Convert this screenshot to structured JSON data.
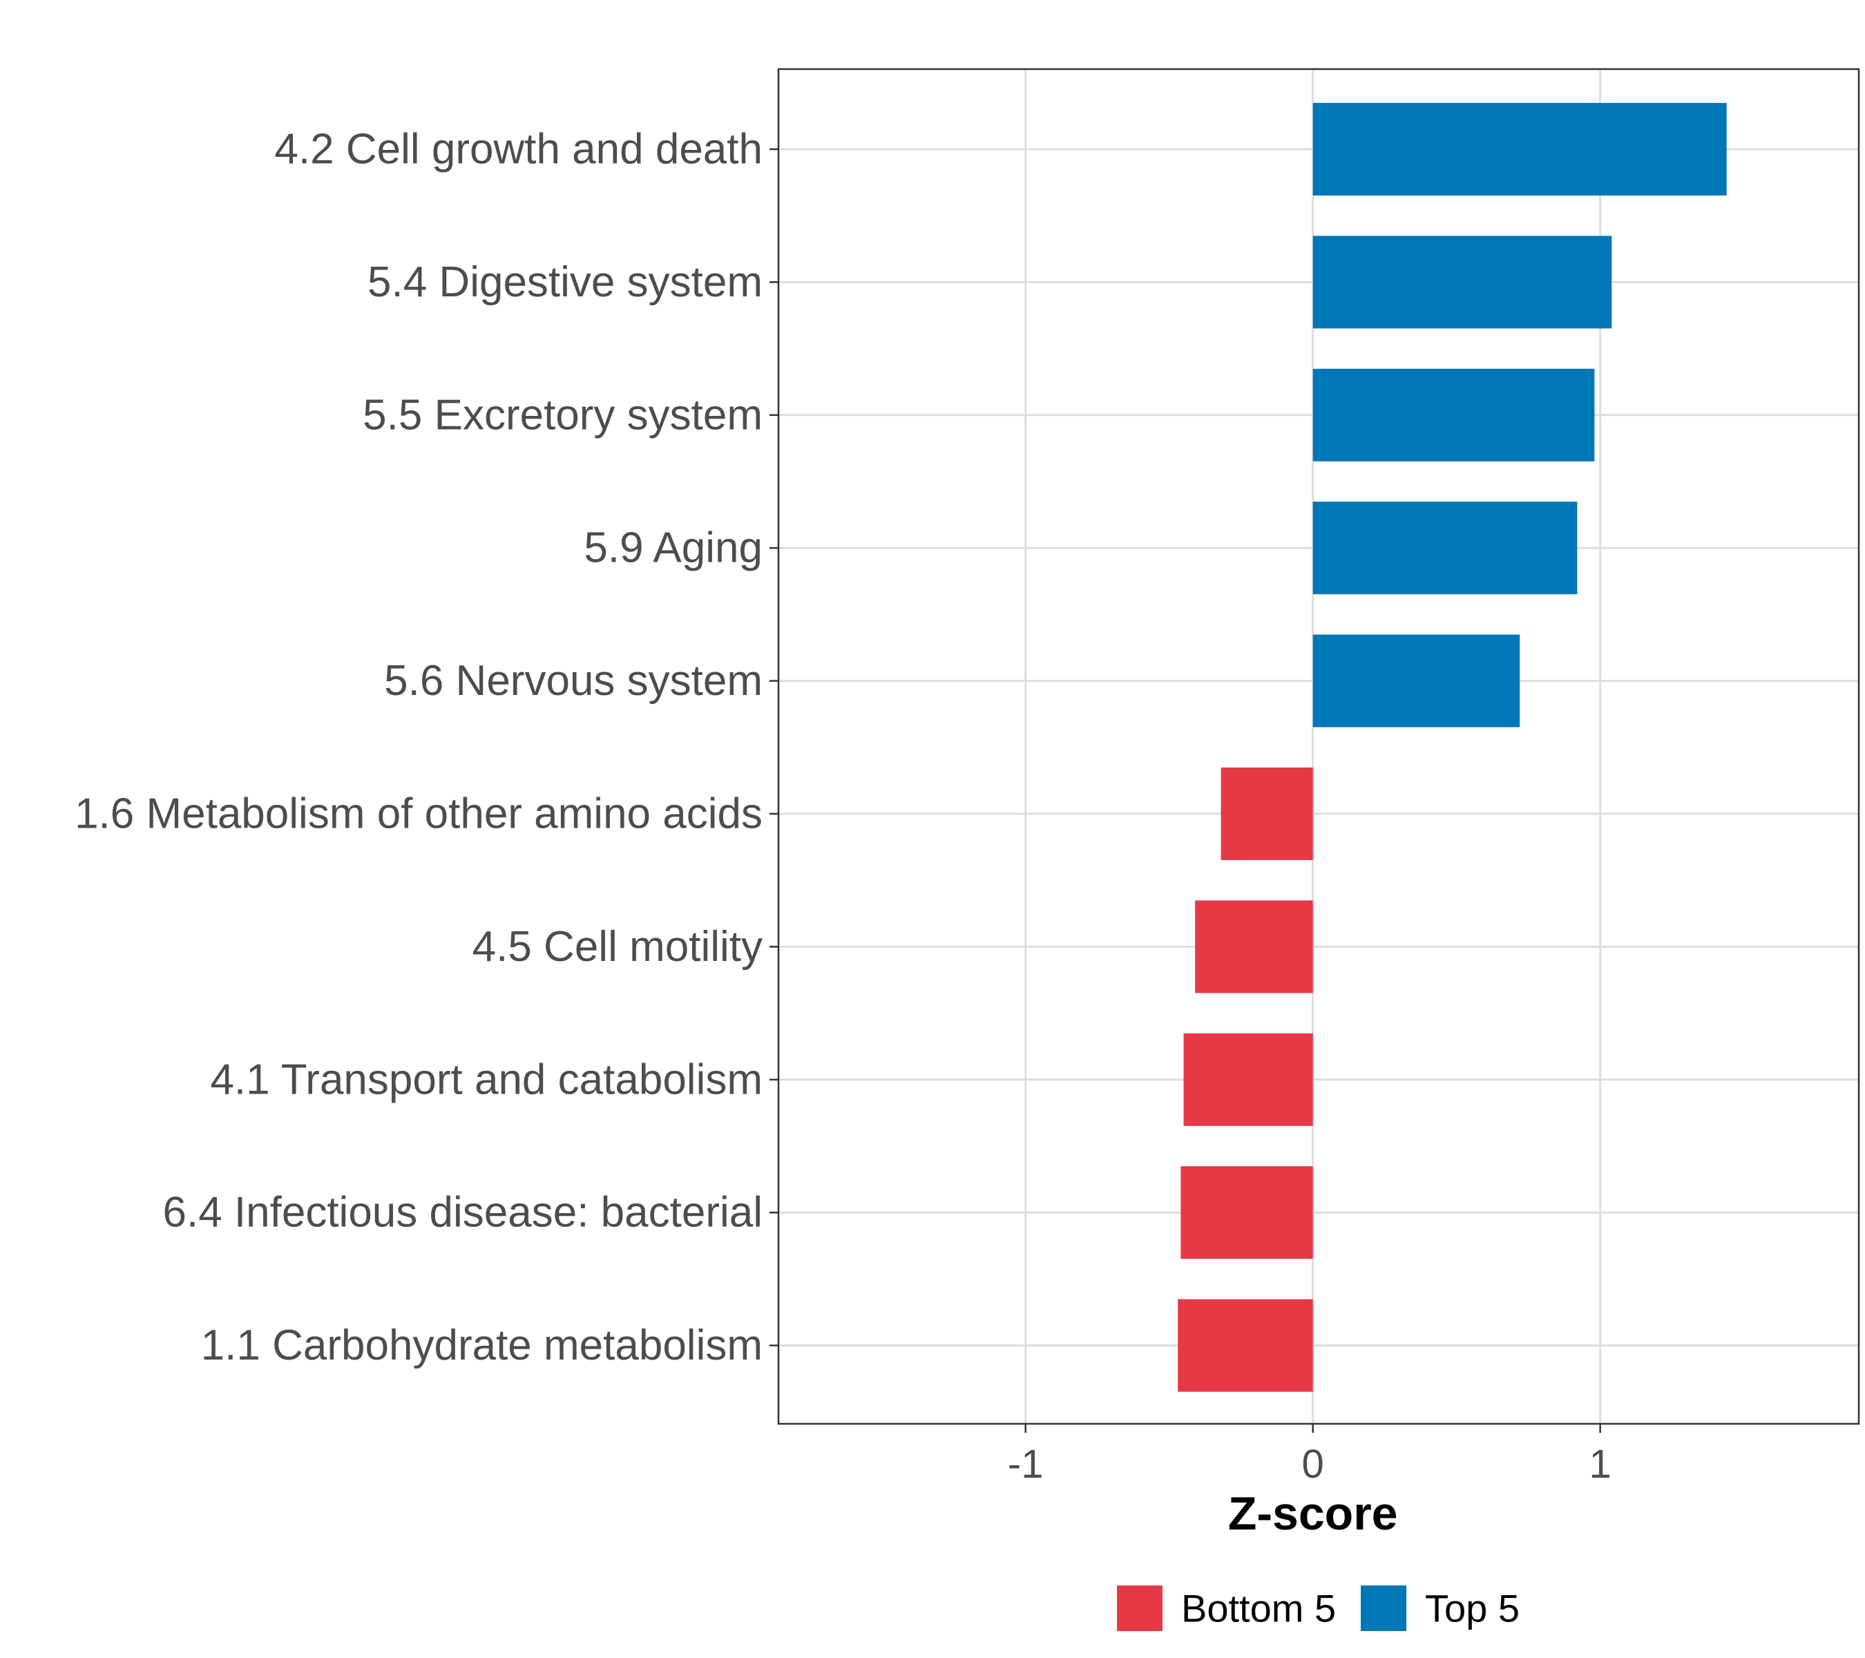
{
  "chart_data": {
    "type": "bar",
    "orientation": "horizontal",
    "title": "",
    "xlabel": "Z-score",
    "ylabel": "",
    "xlim": [
      -1.86,
      1.9
    ],
    "xticks": [
      -1,
      0,
      1
    ],
    "xtick_labels": [
      "-1",
      "0",
      "1"
    ],
    "grid": true,
    "legend_position": "bottom",
    "categories": [
      "4.2 Cell growth and death",
      "5.4 Digestive system",
      "5.5 Excretory system",
      "5.9 Aging",
      "5.6 Nervous system",
      "1.6 Metabolism of other amino acids",
      "4.5 Cell motility",
      "4.1 Transport and catabolism",
      "6.4 Infectious disease: bacterial",
      "1.1 Carbohydrate metabolism"
    ],
    "values": [
      1.44,
      1.04,
      0.98,
      0.92,
      0.72,
      -0.32,
      -0.41,
      -0.45,
      -0.46,
      -0.47
    ],
    "groups": [
      "Top 5",
      "Top 5",
      "Top 5",
      "Top 5",
      "Top 5",
      "Bottom 5",
      "Bottom 5",
      "Bottom 5",
      "Bottom 5",
      "Bottom 5"
    ],
    "legend": [
      {
        "name": "Bottom 5",
        "color": "#E63946"
      },
      {
        "name": "Top 5",
        "color": "#0077B6"
      }
    ]
  }
}
